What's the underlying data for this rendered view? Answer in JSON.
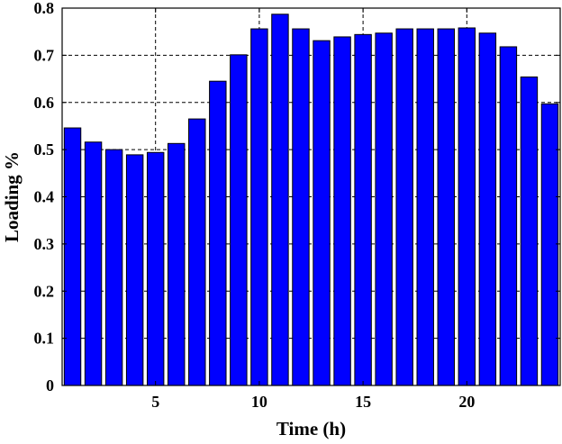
{
  "chart_data": {
    "type": "bar",
    "title": "",
    "xlabel": "Time (h)",
    "ylabel": "Loading %",
    "x": [
      1,
      2,
      3,
      4,
      5,
      6,
      7,
      8,
      9,
      10,
      11,
      12,
      13,
      14,
      15,
      16,
      17,
      18,
      19,
      20,
      21,
      22,
      23,
      24
    ],
    "values": [
      0.546,
      0.516,
      0.5,
      0.489,
      0.494,
      0.513,
      0.565,
      0.645,
      0.701,
      0.756,
      0.787,
      0.756,
      0.731,
      0.739,
      0.744,
      0.747,
      0.756,
      0.756,
      0.756,
      0.758,
      0.747,
      0.718,
      0.654,
      0.597
    ],
    "xlim": [
      0.5,
      24.5
    ],
    "ylim": [
      0,
      0.8
    ],
    "xticks": [
      "5",
      "10",
      "15",
      "20"
    ],
    "yticks": [
      "0",
      "0.1",
      "0.2",
      "0.3",
      "0.4",
      "0.5",
      "0.6",
      "0.7",
      "0.8"
    ],
    "grid": true,
    "bar_color": "#0000ff",
    "bar_edge_color": "#000000"
  }
}
